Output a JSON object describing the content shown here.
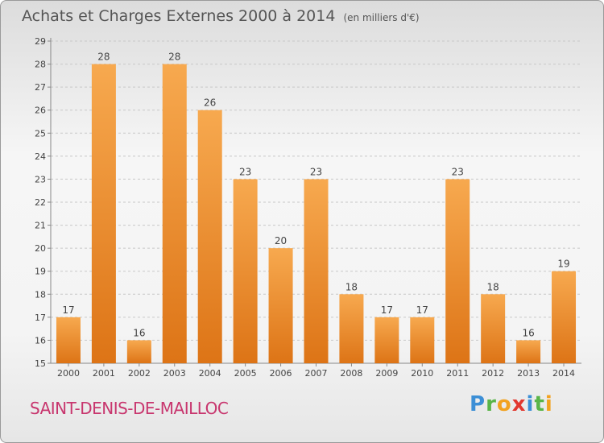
{
  "title": "Achats et Charges Externes 2000 à 2014",
  "subtitle": "(en milliers d'€)",
  "city": "SAINT-DENIS-DE-MAILLOC",
  "logo": {
    "letters": [
      "P",
      "r",
      "o",
      "x",
      "i",
      "t",
      "i"
    ]
  },
  "colors": {
    "bar_light": "#f7a94f",
    "bar_dark": "#dd7416",
    "grid": "#c8c8c8",
    "axis": "#888888",
    "text": "#444444"
  },
  "chart_data": {
    "type": "bar",
    "categories": [
      "2000",
      "2001",
      "2002",
      "2003",
      "2004",
      "2005",
      "2006",
      "2007",
      "2008",
      "2009",
      "2010",
      "2011",
      "2012",
      "2013",
      "2014"
    ],
    "values": [
      17,
      28,
      16,
      28,
      26,
      23,
      20,
      23,
      18,
      17,
      17,
      23,
      18,
      16,
      19
    ],
    "title": "Achats et Charges Externes 2000 à 2014",
    "subtitle": "(en milliers d'€)",
    "ylim": [
      15,
      29
    ],
    "yticks": [
      15,
      16,
      17,
      18,
      19,
      20,
      21,
      22,
      23,
      24,
      25,
      26,
      27,
      28,
      29
    ],
    "grid": true
  }
}
